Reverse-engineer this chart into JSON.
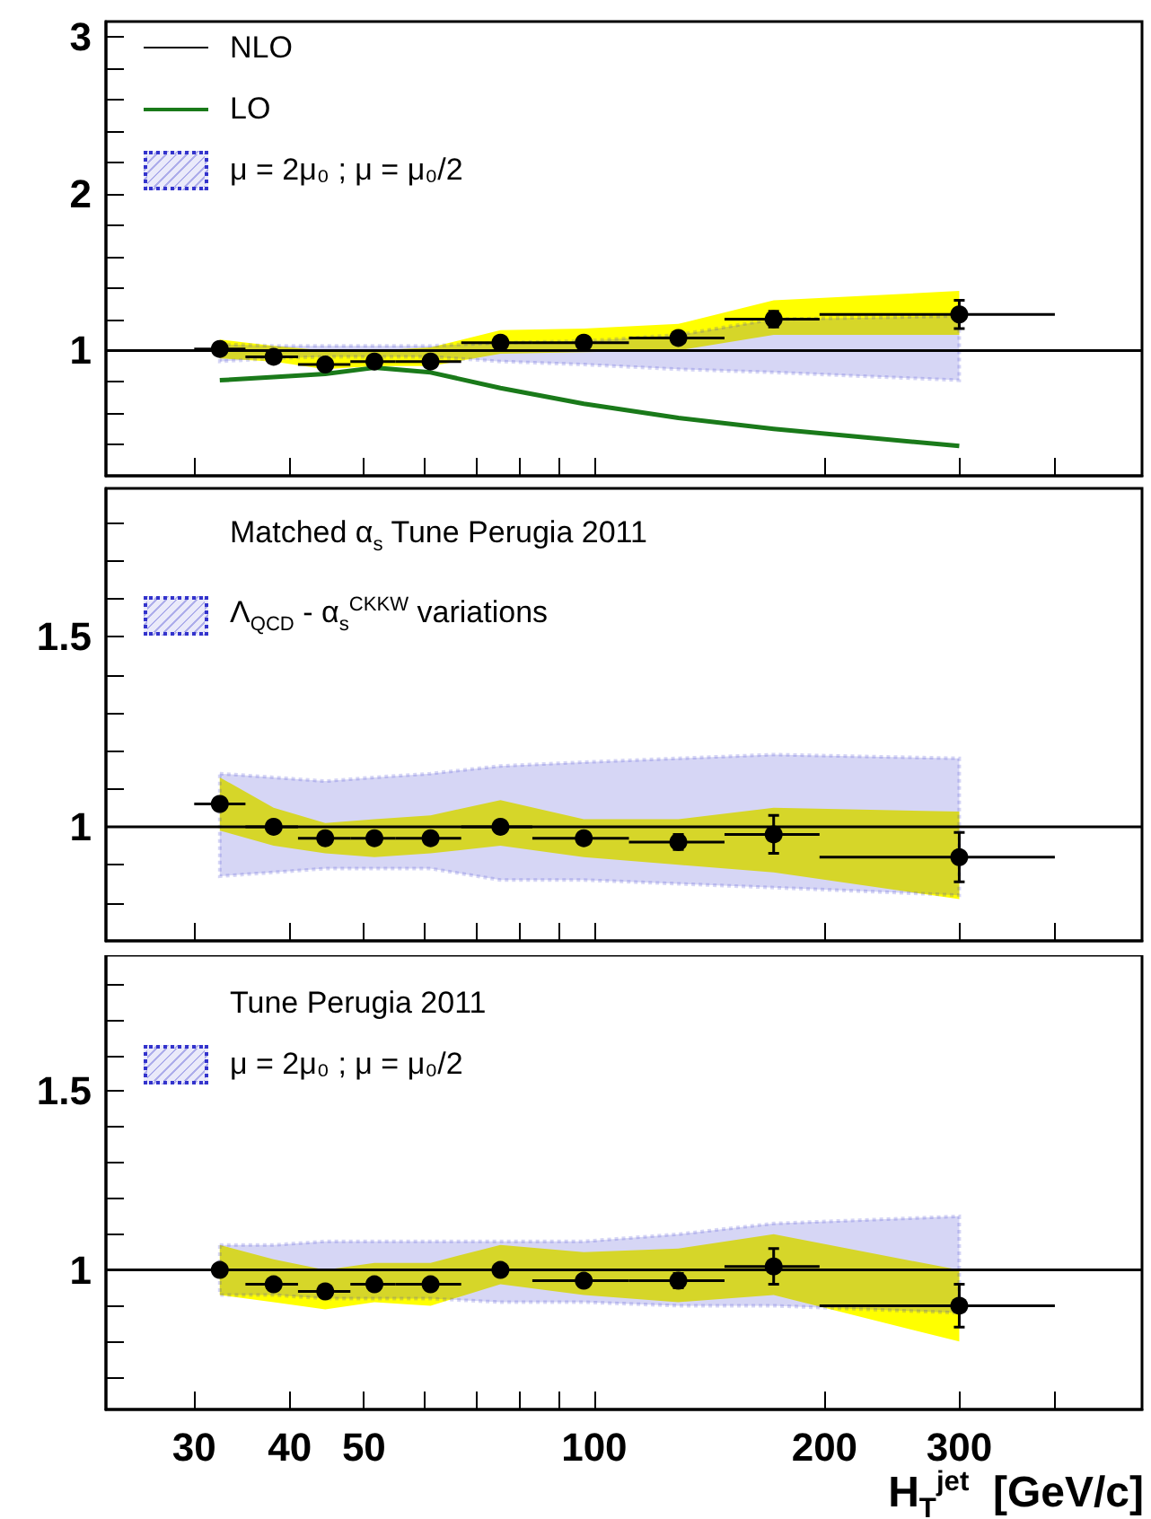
{
  "chart_data": [
    {
      "type": "scatter",
      "x": [
        32.4,
        38.1,
        44.5,
        51.6,
        61.1,
        75.4,
        96.9,
        128.8,
        171.6,
        300
      ],
      "xlim": [
        23,
        520
      ],
      "ylim": [
        0.2,
        3.1
      ],
      "xticks": [
        30,
        40,
        50,
        {
          "value": 60,
          "label": null
        },
        {
          "value": 70,
          "label": null
        },
        {
          "value": 80,
          "label": null
        },
        {
          "value": 90,
          "label": null
        },
        100,
        200,
        300,
        {
          "value": 400,
          "label": null
        }
      ],
      "yticks": [
        {
          "value": 0.4,
          "label": null
        },
        {
          "value": 0.6,
          "label": null
        },
        {
          "value": 0.8,
          "label": null
        },
        1,
        {
          "value": 1.2,
          "label": null
        },
        {
          "value": 1.4,
          "label": null
        },
        {
          "value": 1.6,
          "label": null
        },
        {
          "value": 1.8,
          "label": null
        },
        2,
        {
          "value": 2.2,
          "label": null
        },
        {
          "value": 2.4,
          "label": null
        },
        {
          "value": 2.6,
          "label": null
        },
        {
          "value": 2.8,
          "label": null
        },
        3
      ],
      "log": "x",
      "legend": "top left",
      "tick_labels": "y",
      "annotations": [
        "μ = 2μ₀ ; μ = μ₀/2"
      ],
      "series": [
        {
          "type": "line",
          "name": "NLO",
          "color": "#000000",
          "x": [
            23,
            32.4,
            38.1,
            44.5,
            51.6,
            61.1,
            75.4,
            96.9,
            128.8,
            171.6,
            300,
            520
          ],
          "values": [
            1,
            1,
            1,
            1,
            1,
            1,
            1,
            1,
            1,
            1,
            1,
            1
          ],
          "lower": [
            null,
            0.93,
            0.95,
            0.96,
            0.96,
            0.96,
            0.93,
            0.91,
            0.88,
            0.86,
            0.81,
            null
          ],
          "upper": [
            null,
            1.04,
            1.03,
            1.03,
            1.03,
            1.03,
            1.05,
            1.06,
            1.1,
            1.2,
            1.22,
            null
          ]
        },
        {
          "type": "line",
          "name": "LO",
          "color": "#1a7a1a",
          "values": [
            0.81,
            0.83,
            0.85,
            0.89,
            0.86,
            0.76,
            0.66,
            0.57,
            0.5,
            0.39
          ]
        },
        {
          "marker": "circle",
          "color": "#000000",
          "values": [
            1.01,
            0.96,
            0.91,
            0.93,
            0.93,
            1.05,
            1.05,
            1.08,
            1.2,
            1.23
          ],
          "errors": [
            null,
            null,
            null,
            null,
            null,
            null,
            null,
            0.03,
            0.05,
            0.09
          ],
          "xerrors": [
            [
              30,
              35
            ],
            [
              35,
              41
            ],
            [
              41,
              48
            ],
            [
              48,
              55
            ],
            [
              55,
              67
            ],
            [
              67,
              83
            ],
            [
              83,
              111
            ],
            [
              111,
              148
            ],
            [
              148,
              197
            ],
            [
              197,
              400
            ]
          ],
          "lower": [
            0.95,
            0.93,
            0.88,
            0.9,
            0.9,
            0.98,
            0.99,
            1.0,
            1.1,
            1.1
          ],
          "upper": [
            1.07,
            1.03,
            1.0,
            1.0,
            1.02,
            1.13,
            1.14,
            1.17,
            1.32,
            1.38
          ]
        }
      ]
    },
    {
      "type": "scatter",
      "x": [
        32.4,
        38.1,
        44.5,
        51.6,
        61.1,
        75.4,
        96.9,
        128.8,
        171.6,
        300
      ],
      "xlim": [
        23,
        520
      ],
      "ylim": [
        0.7,
        1.89
      ],
      "xticks": [
        30,
        40,
        50,
        {
          "value": 60,
          "label": null
        },
        {
          "value": 70,
          "label": null
        },
        {
          "value": 80,
          "label": null
        },
        {
          "value": 90,
          "label": null
        },
        100,
        200,
        300,
        {
          "value": 400,
          "label": null
        }
      ],
      "yticks": [
        {
          "value": 0.8,
          "label": null
        },
        {
          "value": 0.9,
          "label": null
        },
        1,
        {
          "value": 1.1,
          "label": null
        },
        {
          "value": 1.2,
          "label": null
        },
        {
          "value": 1.3,
          "label": null
        },
        {
          "value": 1.4,
          "label": null
        },
        1.5,
        {
          "value": 1.6,
          "label": null
        },
        {
          "value": 1.7,
          "label": null
        },
        {
          "value": 1.8,
          "label": null
        }
      ],
      "log": "x",
      "tick_labels": "y",
      "annotations": [
        "Matched α$_{s}$ Tune Perugia 2011",
        "Λ$_{QCD}$ - α$_{s}$$^{CKKW}$ variations"
      ],
      "series": [
        {
          "type": "line",
          "color": "#000000",
          "x": [
            23,
            32.4,
            38.1,
            44.5,
            51.6,
            61.1,
            75.4,
            96.9,
            128.8,
            171.6,
            300,
            520
          ],
          "values": [
            1,
            1,
            1,
            1,
            1,
            1,
            1,
            1,
            1,
            1,
            1,
            1
          ],
          "lower": [
            null,
            0.87,
            0.88,
            0.89,
            0.89,
            0.89,
            0.86,
            0.86,
            0.85,
            0.84,
            0.82,
            null
          ],
          "upper": [
            null,
            1.14,
            1.13,
            1.12,
            1.13,
            1.14,
            1.16,
            1.17,
            1.18,
            1.19,
            1.18,
            null
          ]
        },
        {
          "marker": "circle",
          "color": "#000000",
          "values": [
            1.06,
            1.0,
            0.97,
            0.97,
            0.97,
            1.0,
            0.97,
            0.96,
            0.98,
            0.92
          ],
          "errors": [
            null,
            null,
            null,
            null,
            null,
            null,
            null,
            0.02,
            0.05,
            0.065
          ],
          "xerrors": [
            [
              30,
              35
            ],
            [
              35,
              41
            ],
            [
              41,
              48
            ],
            [
              48,
              55
            ],
            [
              55,
              67
            ],
            [
              67,
              83
            ],
            [
              83,
              111
            ],
            [
              111,
              148
            ],
            [
              148,
              197
            ],
            [
              197,
              400
            ]
          ],
          "lower": [
            0.99,
            0.95,
            0.93,
            0.92,
            0.93,
            0.95,
            0.92,
            0.9,
            0.88,
            0.81
          ],
          "upper": [
            1.13,
            1.05,
            1.01,
            1.02,
            1.03,
            1.07,
            1.02,
            1.02,
            1.05,
            1.04
          ]
        }
      ]
    },
    {
      "type": "scatter",
      "x": [
        32.4,
        38.1,
        44.5,
        51.6,
        61.1,
        75.4,
        96.9,
        128.8,
        171.6,
        300
      ],
      "xlim": [
        23,
        520
      ],
      "ylim": [
        0.61,
        1.88
      ],
      "xlabel": "H$_{T}$$^{jet}$  [GeV/c]",
      "xticks": [
        30,
        40,
        50,
        {
          "value": 60,
          "label": null
        },
        {
          "value": 70,
          "label": null
        },
        {
          "value": 80,
          "label": null
        },
        {
          "value": 90,
          "label": null
        },
        100,
        200,
        300,
        {
          "value": 400,
          "label": null
        }
      ],
      "yticks": [
        {
          "value": 0.7,
          "label": null
        },
        {
          "value": 0.8,
          "label": null
        },
        {
          "value": 0.9,
          "label": null
        },
        1,
        {
          "value": 1.1,
          "label": null
        },
        {
          "value": 1.2,
          "label": null
        },
        {
          "value": 1.3,
          "label": null
        },
        {
          "value": 1.4,
          "label": null
        },
        1.5,
        {
          "value": 1.6,
          "label": null
        },
        {
          "value": 1.7,
          "label": null
        },
        {
          "value": 1.8,
          "label": null
        }
      ],
      "log": "x",
      "annotations": [
        "Tune Perugia 2011",
        "μ = 2μ₀ ; μ = μ₀/2"
      ],
      "series": [
        {
          "type": "line",
          "color": "#000000",
          "x": [
            23,
            32.4,
            38.1,
            44.5,
            51.6,
            61.1,
            75.4,
            96.9,
            128.8,
            171.6,
            300,
            520
          ],
          "values": [
            1,
            1,
            1,
            1,
            1,
            1,
            1,
            1,
            1,
            1,
            1,
            1
          ],
          "lower": [
            null,
            0.93,
            0.93,
            0.92,
            0.92,
            0.92,
            0.91,
            0.91,
            0.9,
            0.9,
            0.88,
            null
          ],
          "upper": [
            null,
            1.07,
            1.07,
            1.08,
            1.08,
            1.08,
            1.08,
            1.08,
            1.1,
            1.13,
            1.15,
            null
          ]
        },
        {
          "marker": "circle",
          "color": "#000000",
          "values": [
            1.0,
            0.96,
            0.94,
            0.96,
            0.96,
            1.0,
            0.97,
            0.97,
            1.01,
            0.9
          ],
          "errors": [
            null,
            null,
            null,
            null,
            null,
            null,
            null,
            0.02,
            0.05,
            0.06
          ],
          "xerrors": [
            [
              30,
              35
            ],
            [
              35,
              41
            ],
            [
              41,
              48
            ],
            [
              48,
              55
            ],
            [
              55,
              67
            ],
            [
              67,
              83
            ],
            [
              83,
              111
            ],
            [
              111,
              148
            ],
            [
              148,
              197
            ],
            [
              197,
              400
            ]
          ],
          "lower": [
            0.93,
            0.91,
            0.89,
            0.91,
            0.9,
            0.96,
            0.93,
            0.91,
            0.93,
            0.8
          ],
          "upper": [
            1.07,
            1.03,
            1.0,
            1.02,
            1.02,
            1.07,
            1.05,
            1.06,
            1.1,
            1.0
          ]
        }
      ]
    }
  ]
}
